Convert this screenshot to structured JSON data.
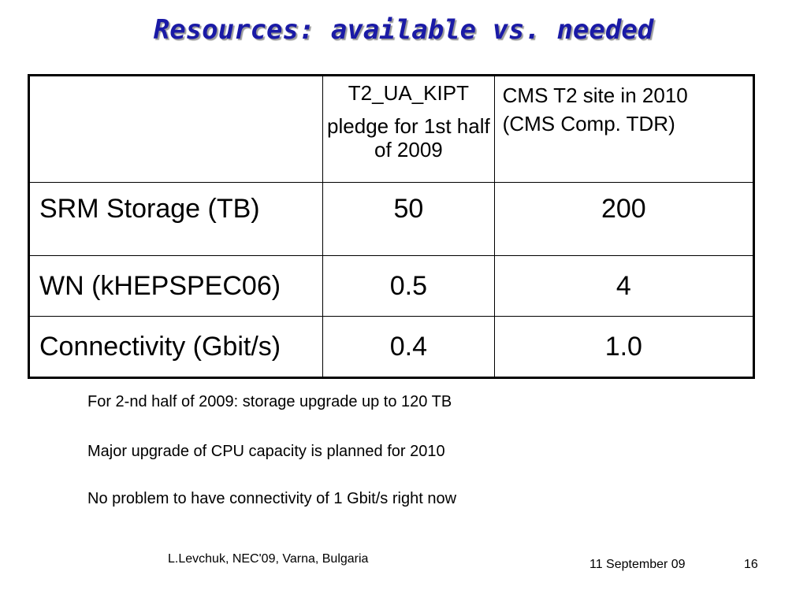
{
  "slide": {
    "title": "Resources: available vs. needed"
  },
  "table": {
    "header": {
      "col1_line1": "T2_UA_KIPT",
      "col1_line2": "pledge for 1st half of 2009",
      "col2": "CMS T2 site in 2010 (CMS Comp. TDR)"
    },
    "rows": [
      {
        "label": "SRM Storage (TB)",
        "kipt": "50",
        "cms": "200"
      },
      {
        "label": "WN (kHEPSPEC06)",
        "kipt": "0.5",
        "cms": "4"
      },
      {
        "label": "Connectivity (Gbit/s)",
        "kipt": "0.4",
        "cms": "1.0"
      }
    ]
  },
  "notes": [
    "For 2-nd half of 2009: storage upgrade up to 120 TB",
    "Major upgrade of CPU capacity is planned for 2010",
    "No problem to have connectivity of 1 Gbit/s right now"
  ],
  "footer": {
    "author": "L.Levchuk, NEC'09, Varna, Bulgaria",
    "date": "11 September 09",
    "page": "16"
  }
}
